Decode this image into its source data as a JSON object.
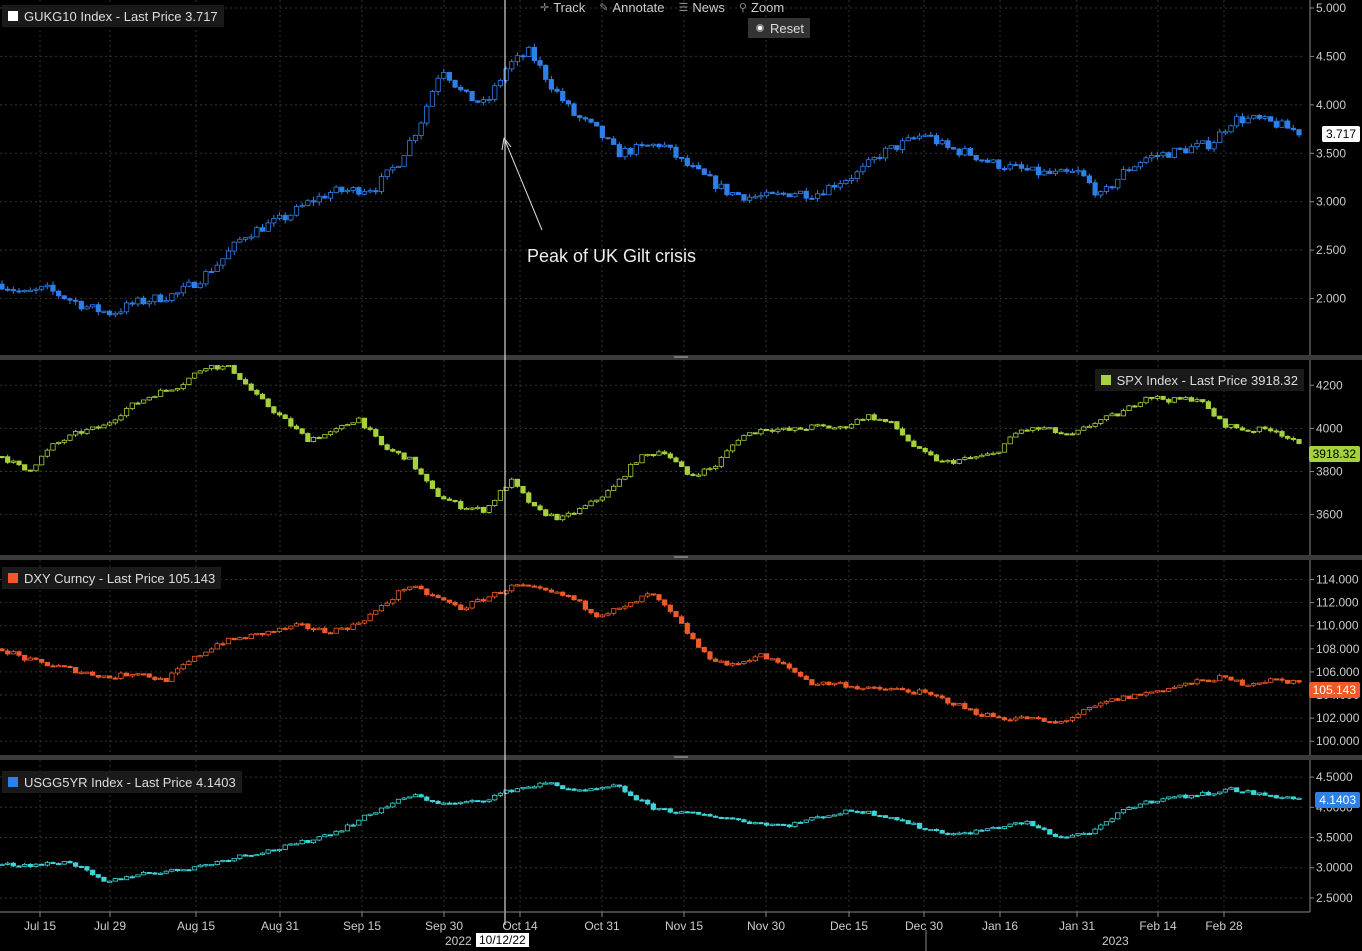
{
  "toolbar": {
    "track": "Track",
    "annotate": "Annotate",
    "news": "News",
    "zoom": "Zoom",
    "reset": "Reset"
  },
  "annotation": "Peak of UK Gilt crisis",
  "x_axis": {
    "labels": [
      "Jul 15",
      "Jul 29",
      "Aug 15",
      "Aug 31",
      "Sep 15",
      "Sep 30",
      "Oct 14",
      "Oct 31",
      "Nov 15",
      "Nov 30",
      "Dec 15",
      "Dec 30",
      "Jan 16",
      "Jan 31",
      "Feb 14",
      "Feb 28"
    ],
    "year_left": "2022",
    "year_right": "2023",
    "crosshair_date": "10/12/22"
  },
  "colors": {
    "gilt": "#2f7fe8",
    "spx": "#a4d13c",
    "dxy": "#f05a28",
    "ust": "#3fd4d8",
    "up": "#000000"
  },
  "chart_data": [
    {
      "type": "candlestick",
      "name": "GUKG10 Index",
      "legend": "GUKG10 Index - Last Price 3.717",
      "last": "3.717",
      "ylim": [
        1.5,
        5.0
      ],
      "ticks": [
        "5.000",
        "4.500",
        "4.000",
        "3.500",
        "3.000",
        "2.500",
        "2.000"
      ],
      "tick_values": [
        5.0,
        4.5,
        4.0,
        3.5,
        3.0,
        2.5,
        2.0
      ],
      "anchors": [
        2.15,
        2.05,
        2.1,
        2.0,
        1.9,
        1.85,
        1.95,
        2.0,
        2.05,
        2.2,
        2.4,
        2.65,
        2.75,
        2.85,
        3.0,
        3.1,
        3.12,
        3.15,
        3.4,
        3.8,
        4.4,
        4.1,
        4.0,
        4.4,
        4.55,
        4.2,
        3.9,
        3.75,
        3.5,
        3.55,
        3.6,
        3.4,
        3.25,
        3.1,
        3.05,
        3.05,
        3.1,
        3.08,
        3.2,
        3.3,
        3.5,
        3.6,
        3.7,
        3.55,
        3.5,
        3.4,
        3.35,
        3.3,
        3.28,
        3.3,
        3.05,
        3.3,
        3.45,
        3.5,
        3.55,
        3.6,
        3.85,
        3.85,
        3.8,
        3.72
      ]
    },
    {
      "type": "candlestick",
      "name": "SPX Index",
      "legend": "SPX Index - Last Price 3918.32",
      "last": "3918.32",
      "ylim": [
        3450,
        4280
      ],
      "ticks": [
        "4200",
        "4000",
        "3800",
        "3600"
      ],
      "tick_values": [
        4200,
        4000,
        3800,
        3600
      ],
      "anchors": [
        3870,
        3800,
        3920,
        3980,
        4010,
        4100,
        4160,
        4200,
        4290,
        4280,
        4150,
        4050,
        3950,
        3980,
        4050,
        3910,
        3860,
        3700,
        3640,
        3620,
        3760,
        3620,
        3580,
        3640,
        3720,
        3860,
        3900,
        3780,
        3820,
        3960,
        4000,
        3990,
        4010,
        4000,
        4060,
        4020,
        3900,
        3840,
        3860,
        3880,
        3990,
        4000,
        3960,
        4030,
        4070,
        4150,
        4130,
        4140,
        4020,
        3990,
        4000,
        3920
      ]
    },
    {
      "type": "candlestick",
      "name": "DXY Curncy",
      "legend": "DXY Curncy - Last Price 105.143",
      "last": "105.143",
      "ylim": [
        99.5,
        115.0
      ],
      "ticks": [
        "114.000",
        "112.000",
        "110.000",
        "108.000",
        "106.000",
        "104.000",
        "102.000",
        "100.000"
      ],
      "tick_values": [
        114,
        112,
        110,
        108,
        106,
        104,
        102,
        100
      ],
      "anchors": [
        108.0,
        107.0,
        106.5,
        106.0,
        105.5,
        106.0,
        105.2,
        107.0,
        108.5,
        109.0,
        109.5,
        110.0,
        109.5,
        110.0,
        111.5,
        113.5,
        112.5,
        111.5,
        112.5,
        113.5,
        113.0,
        112.5,
        111.0,
        111.5,
        112.8,
        110.5,
        107.5,
        106.5,
        107.5,
        106.5,
        105.0,
        105.0,
        104.5,
        104.5,
        104.2,
        103.5,
        102.5,
        102.0,
        102.0,
        101.5,
        102.5,
        103.5,
        104.0,
        104.5,
        105.0,
        105.5,
        105.0,
        105.3,
        105.14
      ]
    },
    {
      "type": "candlestick",
      "name": "USGG5YR Index",
      "legend": "USGG5YR Index - Last Price 4.1403",
      "last": "4.1403",
      "ylim": [
        2.4,
        4.65
      ],
      "ticks": [
        "4.5000",
        "4.0000",
        "3.5000",
        "3.0000",
        "2.5000"
      ],
      "tick_values": [
        4.5,
        4.0,
        3.5,
        3.0,
        2.5
      ],
      "anchors": [
        3.05,
        3.05,
        3.1,
        2.75,
        2.9,
        2.95,
        3.05,
        3.2,
        3.3,
        3.45,
        3.65,
        3.95,
        4.2,
        4.05,
        4.1,
        4.3,
        4.4,
        4.25,
        4.35,
        4.0,
        3.9,
        3.85,
        3.75,
        3.7,
        3.85,
        3.95,
        3.85,
        3.65,
        3.55,
        3.65,
        3.75,
        3.5,
        3.6,
        4.0,
        4.15,
        4.2,
        4.3,
        4.2,
        4.14
      ]
    }
  ]
}
